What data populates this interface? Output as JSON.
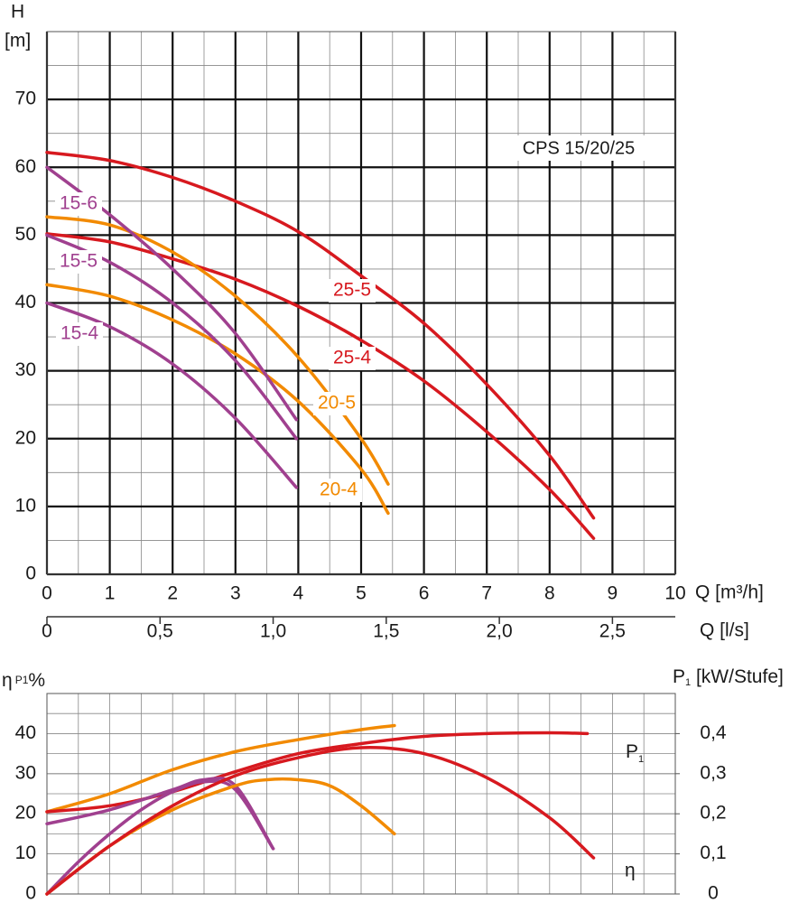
{
  "chart_data": [
    {
      "type": "line",
      "annotation": "CPS 15/20/25",
      "ylabel": "H",
      "ylabel_unit": "[m]",
      "xlabel": "Q [m³/h]",
      "xlim": [
        0,
        10
      ],
      "xticks": [
        0,
        1,
        2,
        3,
        4,
        5,
        6,
        7,
        8,
        9,
        10
      ],
      "ylim": [
        0,
        80
      ],
      "yticks": [
        0,
        10,
        20,
        30,
        40,
        50,
        60,
        70
      ],
      "grid": true,
      "x2label": "Q [l/s]",
      "x2lim": [
        0,
        2.7778
      ],
      "x2ticks": [
        {
          "value": 0,
          "label": "0"
        },
        {
          "value": 0.5,
          "label": "0,5"
        },
        {
          "value": 1,
          "label": "1,0"
        },
        {
          "value": 1.5,
          "label": "1,5"
        },
        {
          "value": 2,
          "label": "2,0"
        },
        {
          "value": 2.5,
          "label": "2,5"
        }
      ],
      "series": [
        {
          "name": "25-5",
          "color": "#d7191f",
          "x": [
            0,
            1,
            2,
            3,
            4,
            5,
            6,
            7,
            8,
            8.7
          ],
          "values": [
            62.2,
            61,
            58.5,
            55,
            50.5,
            44,
            37,
            28,
            17.5,
            8.3
          ]
        },
        {
          "name": "25-4",
          "color": "#d7191f",
          "x": [
            0,
            1,
            2,
            3,
            4,
            5,
            6,
            7,
            8,
            8.7
          ],
          "values": [
            50.2,
            49,
            46.5,
            43.5,
            39.5,
            34.5,
            28.5,
            21,
            12.5,
            5.3
          ]
        },
        {
          "name": "20-5",
          "color": "#f28a00",
          "x": [
            0,
            1,
            2,
            3,
            4,
            5,
            5.43
          ],
          "values": [
            52.7,
            51.5,
            47.5,
            41,
            32,
            20,
            13.3
          ]
        },
        {
          "name": "20-4",
          "color": "#f28a00",
          "x": [
            0,
            1,
            2,
            3,
            4,
            5,
            5.43
          ],
          "values": [
            42.7,
            41,
            37.5,
            32.5,
            25.5,
            15.5,
            9
          ]
        },
        {
          "name": "15-6",
          "color": "#a0408f",
          "x": [
            0,
            1,
            2,
            3,
            3.97
          ],
          "values": [
            60,
            53,
            45,
            35.5,
            22.8
          ]
        },
        {
          "name": "15-5",
          "color": "#a0408f",
          "x": [
            0,
            1,
            2,
            3,
            3.97
          ],
          "values": [
            50,
            46,
            40,
            31.5,
            20
          ]
        },
        {
          "name": "15-4",
          "color": "#a0408f",
          "x": [
            0,
            1,
            2,
            3,
            3.97
          ],
          "values": [
            40,
            36.5,
            31,
            23,
            12.8
          ]
        }
      ]
    },
    {
      "type": "line",
      "ylabel": "η",
      "ylabel_sub": "P1",
      "ylabel_unit": "%",
      "y2label": "P",
      "y2label_sub": "1",
      "y2label_unit": " [kW/Stufe]",
      "annotations": [
        {
          "text": "P",
          "sub": "1"
        },
        {
          "text": "η"
        }
      ],
      "xlim": [
        0,
        10
      ],
      "xticks": [
        0,
        1,
        2,
        3,
        4,
        5,
        6,
        7,
        8,
        9,
        10
      ],
      "ylim": [
        0,
        50
      ],
      "yticks": [
        0,
        10,
        20,
        30,
        40
      ],
      "y2lim": [
        0,
        0.5
      ],
      "y2ticks": [
        0,
        {
          "value": 0.1,
          "label": "0,1"
        },
        {
          "value": 0.2,
          "label": "0,2"
        },
        {
          "value": 0.3,
          "label": "0,3"
        },
        {
          "value": 0.4,
          "label": "0,4"
        }
      ],
      "grid": true,
      "series": [
        {
          "color": "#f28a00",
          "axis": "y2",
          "x": [
            0,
            1,
            2,
            3,
            4,
            5,
            5.53
          ],
          "values": [
            0.205,
            0.25,
            0.31,
            0.355,
            0.385,
            0.41,
            0.42
          ]
        },
        {
          "color": "#d7191f",
          "axis": "y2",
          "x": [
            0,
            1,
            2,
            3,
            4,
            5,
            6,
            7,
            8,
            8.6
          ],
          "values": [
            0.205,
            0.22,
            0.255,
            0.305,
            0.35,
            0.375,
            0.393,
            0.4,
            0.402,
            0.4
          ]
        },
        {
          "color": "#a0408f",
          "axis": "y2",
          "x": [
            0,
            1,
            2,
            2.5,
            3,
            3.6
          ],
          "values": [
            0.175,
            0.21,
            0.26,
            0.285,
            0.27,
            0.113
          ]
        },
        {
          "color": "#a0408f",
          "x": [
            0,
            0.5,
            1,
            1.5,
            2,
            2.5,
            3,
            3.6
          ],
          "values": [
            0,
            8,
            15,
            21,
            25.5,
            28,
            26,
            11.3
          ]
        },
        {
          "color": "#f28a00",
          "x": [
            0,
            1,
            2,
            3,
            3.5,
            4,
            4.5,
            5,
            5.53
          ],
          "values": [
            0,
            12,
            21,
            27,
            28.5,
            28.5,
            27,
            22,
            15
          ]
        },
        {
          "color": "#d7191f",
          "x": [
            0,
            1,
            2,
            3,
            4,
            5,
            6,
            7,
            8,
            8.7
          ],
          "values": [
            0,
            12,
            22,
            29.5,
            34,
            36.5,
            35,
            29,
            19,
            9
          ]
        }
      ]
    }
  ]
}
